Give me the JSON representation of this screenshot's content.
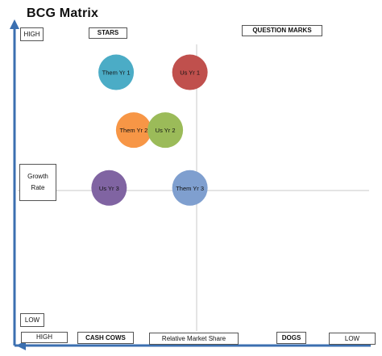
{
  "title": "BCG Matrix",
  "labels": {
    "y_high": "HIGH",
    "y_low": "LOW",
    "y_axis": [
      "Growth",
      "Rate"
    ],
    "x_high": "HIGH",
    "x_low": "LOW",
    "x_axis": "Relative Market Share",
    "stars": "STARS",
    "question_marks": "QUESTION MARKS",
    "cash_cows": "CASH COWS",
    "dogs": "DOGS"
  },
  "chart_data": {
    "type": "scatter",
    "title": "BCG Matrix",
    "xlabel": "Relative Market Share",
    "ylabel": "Growth Rate",
    "x_axis_direction": "HIGH to LOW (left to right)",
    "y_axis_direction": "LOW to HIGH (bottom to top)",
    "quadrants": [
      "STARS",
      "QUESTION MARKS",
      "CASH COWS",
      "DOGS"
    ],
    "points": [
      {
        "label": "Them Yr 1",
        "x": 0.28,
        "y": 0.85,
        "color": "#4bacc6"
      },
      {
        "label": "Us Yr 1",
        "x": 0.49,
        "y": 0.85,
        "color": "#c0504d"
      },
      {
        "label": "Them Yr 2",
        "x": 0.33,
        "y": 0.66,
        "color": "#f79646"
      },
      {
        "label": "Us Yr 2",
        "x": 0.42,
        "y": 0.66,
        "color": "#9bbb59"
      },
      {
        "label": "Us Yr 3",
        "x": 0.26,
        "y": 0.47,
        "color": "#8064a2"
      },
      {
        "label": "Them Yr 3",
        "x": 0.49,
        "y": 0.47,
        "color": "#7f9fcf"
      }
    ]
  }
}
